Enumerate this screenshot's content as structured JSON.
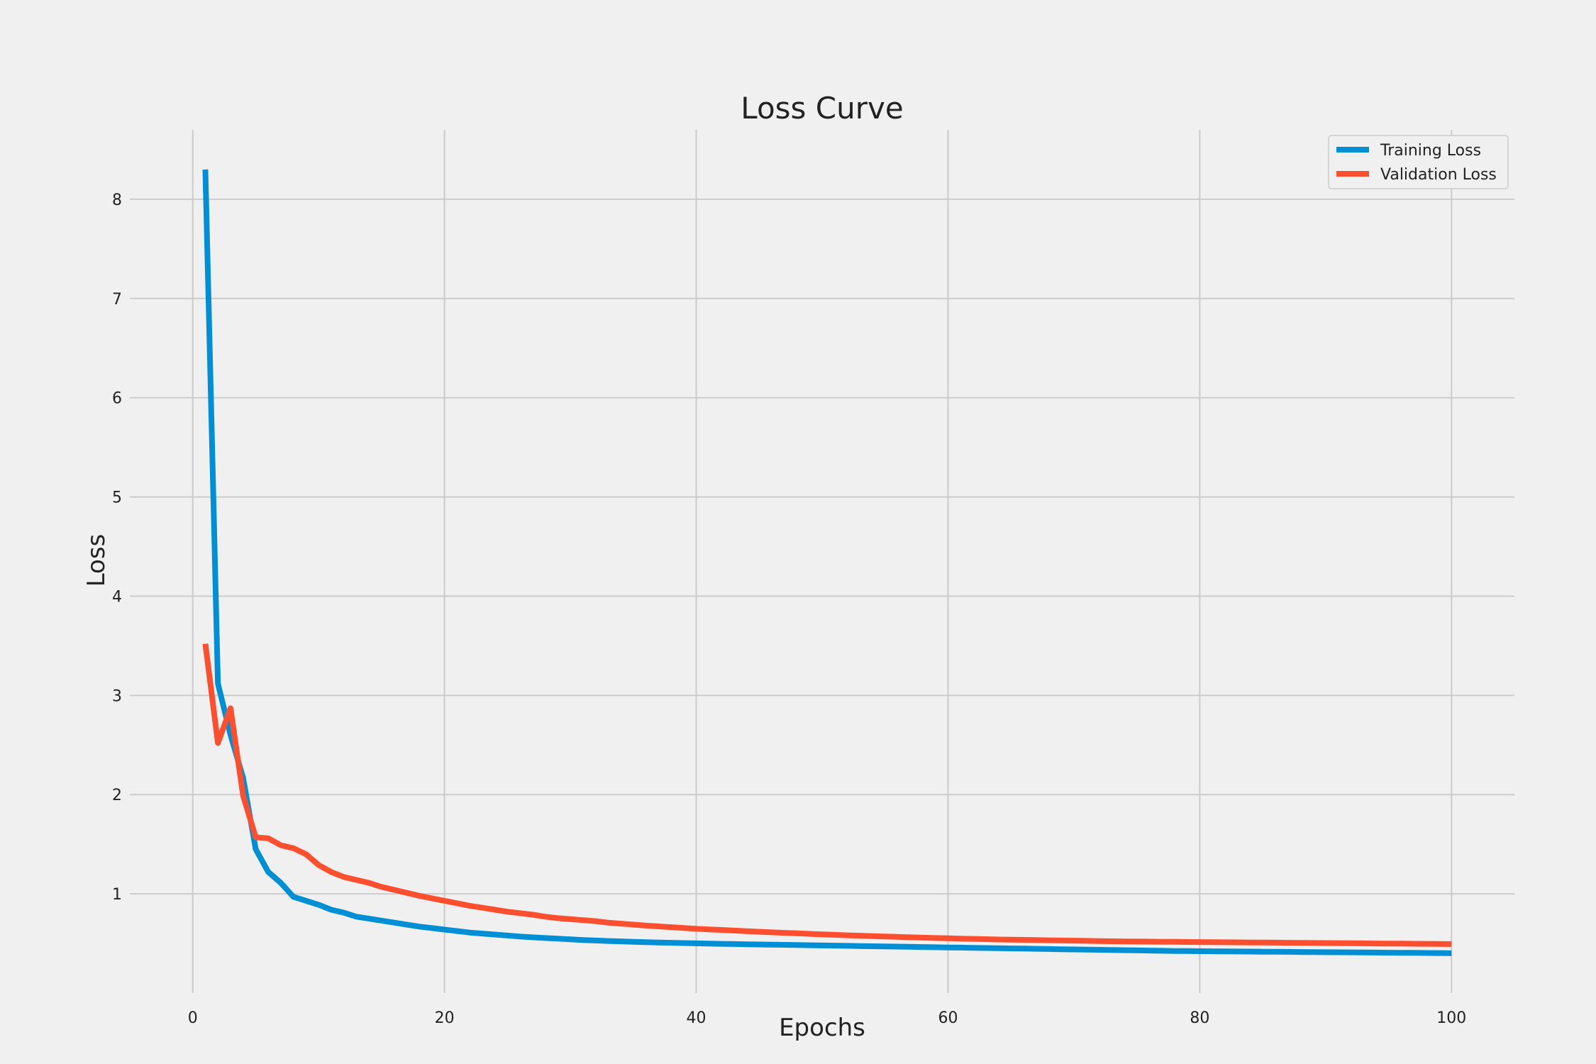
{
  "chart_data": {
    "type": "line",
    "title": "Loss Curve",
    "xlabel": "Epochs",
    "ylabel": "Loss",
    "xlim": [
      -5,
      105
    ],
    "ylim": [
      0,
      8.7
    ],
    "x_ticks": [
      0,
      20,
      40,
      60,
      80,
      100
    ],
    "y_ticks": [
      1,
      2,
      3,
      4,
      5,
      6,
      7,
      8
    ],
    "grid": true,
    "legend_position": "top-right",
    "series": [
      {
        "name": "Training Loss",
        "color": "#008fd5",
        "x": [
          1,
          2,
          3,
          4,
          5,
          6,
          7,
          8,
          9,
          10,
          11,
          12,
          13,
          14,
          15,
          16,
          17,
          18,
          19,
          20,
          21,
          22,
          23,
          24,
          25,
          26,
          27,
          28,
          29,
          30,
          31,
          32,
          33,
          34,
          35,
          36,
          37,
          38,
          39,
          40,
          41,
          42,
          43,
          44,
          45,
          46,
          47,
          48,
          49,
          50,
          51,
          52,
          53,
          54,
          55,
          56,
          57,
          58,
          59,
          60,
          61,
          62,
          63,
          64,
          65,
          66,
          67,
          68,
          69,
          70,
          71,
          72,
          73,
          74,
          75,
          76,
          77,
          78,
          79,
          80,
          81,
          82,
          83,
          84,
          85,
          86,
          87,
          88,
          89,
          90,
          91,
          92,
          93,
          94,
          95,
          96,
          97,
          98,
          99,
          100
        ],
        "values": [
          8.3,
          3.12,
          2.6,
          2.17,
          1.45,
          1.22,
          1.11,
          0.97,
          0.93,
          0.89,
          0.84,
          0.81,
          0.77,
          0.75,
          0.73,
          0.71,
          0.69,
          0.67,
          0.655,
          0.64,
          0.625,
          0.61,
          0.6,
          0.59,
          0.58,
          0.57,
          0.562,
          0.555,
          0.548,
          0.541,
          0.535,
          0.53,
          0.525,
          0.521,
          0.517,
          0.513,
          0.51,
          0.507,
          0.504,
          0.501,
          0.498,
          0.496,
          0.494,
          0.492,
          0.49,
          0.488,
          0.486,
          0.484,
          0.482,
          0.48,
          0.478,
          0.476,
          0.474,
          0.472,
          0.47,
          0.468,
          0.466,
          0.464,
          0.462,
          0.46,
          0.458,
          0.456,
          0.454,
          0.452,
          0.45,
          0.448,
          0.446,
          0.444,
          0.442,
          0.44,
          0.438,
          0.436,
          0.434,
          0.432,
          0.43,
          0.428,
          0.426,
          0.424,
          0.423,
          0.422,
          0.421,
          0.42,
          0.419,
          0.418,
          0.417,
          0.416,
          0.415,
          0.414,
          0.413,
          0.412,
          0.411,
          0.41,
          0.409,
          0.408,
          0.407,
          0.406,
          0.405,
          0.404,
          0.403,
          0.402
        ]
      },
      {
        "name": "Validation Loss",
        "color": "#fc4f30",
        "x": [
          1,
          2,
          3,
          4,
          5,
          6,
          7,
          8,
          9,
          10,
          11,
          12,
          13,
          14,
          15,
          16,
          17,
          18,
          19,
          20,
          21,
          22,
          23,
          24,
          25,
          26,
          27,
          28,
          29,
          30,
          31,
          32,
          33,
          34,
          35,
          36,
          37,
          38,
          39,
          40,
          41,
          42,
          43,
          44,
          45,
          46,
          47,
          48,
          49,
          50,
          51,
          52,
          53,
          54,
          55,
          56,
          57,
          58,
          59,
          60,
          61,
          62,
          63,
          64,
          65,
          66,
          67,
          68,
          69,
          70,
          71,
          72,
          73,
          74,
          75,
          76,
          77,
          78,
          79,
          80,
          81,
          82,
          83,
          84,
          85,
          86,
          87,
          88,
          89,
          90,
          91,
          92,
          93,
          94,
          95,
          96,
          97,
          98,
          99,
          100
        ],
        "values": [
          3.52,
          2.52,
          2.87,
          1.99,
          1.57,
          1.56,
          1.49,
          1.46,
          1.4,
          1.29,
          1.22,
          1.17,
          1.14,
          1.11,
          1.07,
          1.04,
          1.01,
          0.98,
          0.955,
          0.93,
          0.905,
          0.88,
          0.86,
          0.84,
          0.82,
          0.805,
          0.79,
          0.77,
          0.755,
          0.745,
          0.735,
          0.725,
          0.71,
          0.7,
          0.69,
          0.68,
          0.672,
          0.664,
          0.656,
          0.648,
          0.642,
          0.636,
          0.63,
          0.624,
          0.618,
          0.612,
          0.607,
          0.602,
          0.597,
          0.592,
          0.587,
          0.582,
          0.578,
          0.574,
          0.57,
          0.566,
          0.562,
          0.558,
          0.555,
          0.552,
          0.549,
          0.546,
          0.543,
          0.54,
          0.538,
          0.536,
          0.534,
          0.532,
          0.53,
          0.528,
          0.526,
          0.524,
          0.522,
          0.52,
          0.519,
          0.518,
          0.517,
          0.516,
          0.515,
          0.514,
          0.513,
          0.512,
          0.511,
          0.51,
          0.509,
          0.508,
          0.507,
          0.506,
          0.505,
          0.504,
          0.503,
          0.502,
          0.501,
          0.5,
          0.499,
          0.498,
          0.497,
          0.496,
          0.495,
          0.494
        ]
      }
    ]
  }
}
